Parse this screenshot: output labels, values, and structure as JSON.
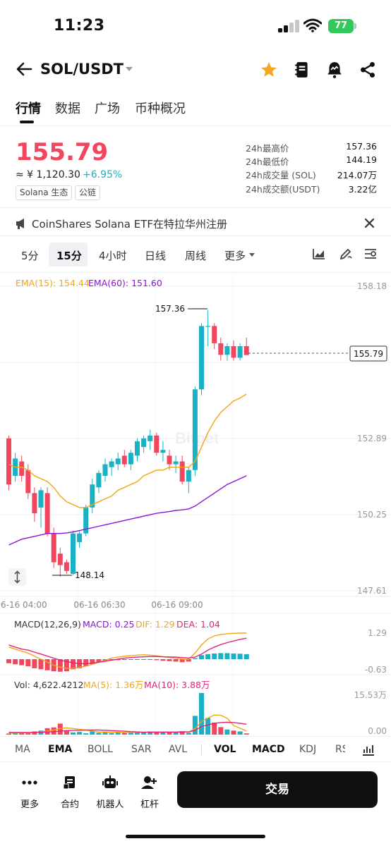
{
  "status": {
    "time": "11:23",
    "battery": "77"
  },
  "header": {
    "pair": "SOL/USDT"
  },
  "tabs": [
    {
      "label": "行情"
    },
    {
      "label": "数据"
    },
    {
      "label": "广场"
    },
    {
      "label": "币种概况"
    }
  ],
  "price": {
    "last": "155.79",
    "cny": "≈ ¥ 1,120.30",
    "change": "+6.95%",
    "tags": [
      "Solana 生态",
      "公链"
    ],
    "stats": [
      {
        "label": "24h最高价",
        "value": "157.36"
      },
      {
        "label": "24h最低价",
        "value": "144.19"
      },
      {
        "label": "24h成交量 (SOL)",
        "value": "214.07万"
      },
      {
        "label": "24h成交额(USDT)",
        "value": "3.22亿"
      }
    ]
  },
  "news": {
    "text": "CoinShares Solana ETF在特拉华州注册"
  },
  "periods": [
    "5分",
    "15分",
    "4小时",
    "日线",
    "周线",
    "更多"
  ],
  "chart_labels": {
    "ema15": "EMA(15): 154.44",
    "ema60": "EMA(60): 151.60",
    "price_ticks": [
      "158.18",
      "152.89",
      "150.25",
      "147.61"
    ],
    "current_price_tag": "155.79",
    "high_marker": "157.36",
    "low_marker": "148.14",
    "time_ticks": [
      "06-16 04:00",
      "06-16 06:30",
      "06-16 09:00"
    ],
    "macd_title": "MACD(12,26,9)",
    "macd_value": "MACD: 0.25",
    "dif_value": "DIF: 1.29",
    "dea_value": "DEA: 1.04",
    "macd_ticks": [
      "1.29",
      "-0.63"
    ],
    "vol_value": "Vol: 4,622.4212",
    "ma5_value": "MA(5): 1.36万",
    "ma10_value": "MA(10): 3.88万",
    "vol_ticks": [
      "15.53万",
      "0.00"
    ],
    "watermark": "Bitget"
  },
  "chart_data": {
    "type": "candlestick",
    "candles": [
      {
        "o": 152.9,
        "h": 153.0,
        "l": 151.1,
        "c": 151.3
      },
      {
        "o": 151.6,
        "h": 152.4,
        "l": 151.4,
        "c": 152.2
      },
      {
        "o": 152.1,
        "h": 152.3,
        "l": 151.4,
        "c": 151.6
      },
      {
        "o": 151.8,
        "h": 152.0,
        "l": 150.8,
        "c": 151.0
      },
      {
        "o": 151.0,
        "h": 151.2,
        "l": 150.0,
        "c": 150.3
      },
      {
        "o": 150.5,
        "h": 151.2,
        "l": 149.8,
        "c": 151.1
      },
      {
        "o": 151.0,
        "h": 151.2,
        "l": 149.5,
        "c": 149.6
      },
      {
        "o": 149.6,
        "h": 149.8,
        "l": 148.4,
        "c": 148.6
      },
      {
        "o": 148.9,
        "h": 149.1,
        "l": 148.1,
        "c": 148.5
      },
      {
        "o": 148.6,
        "h": 148.7,
        "l": 148.2,
        "c": 148.3
      },
      {
        "o": 148.2,
        "h": 149.7,
        "l": 148.15,
        "c": 149.6
      },
      {
        "o": 149.3,
        "h": 149.7,
        "l": 149.1,
        "c": 149.6
      },
      {
        "o": 149.6,
        "h": 150.6,
        "l": 149.5,
        "c": 150.5
      },
      {
        "o": 150.5,
        "h": 151.5,
        "l": 150.3,
        "c": 151.3
      },
      {
        "o": 151.2,
        "h": 151.8,
        "l": 151.0,
        "c": 151.7
      },
      {
        "o": 151.6,
        "h": 152.2,
        "l": 151.4,
        "c": 152.0
      },
      {
        "o": 151.9,
        "h": 152.2,
        "l": 151.6,
        "c": 152.1
      },
      {
        "o": 152.0,
        "h": 152.4,
        "l": 151.8,
        "c": 152.2
      },
      {
        "o": 152.3,
        "h": 152.5,
        "l": 151.9,
        "c": 152.0
      },
      {
        "o": 152.0,
        "h": 152.5,
        "l": 151.8,
        "c": 152.4
      },
      {
        "o": 152.3,
        "h": 152.9,
        "l": 152.1,
        "c": 152.8
      },
      {
        "o": 152.6,
        "h": 153.0,
        "l": 152.4,
        "c": 152.9
      },
      {
        "o": 152.8,
        "h": 153.2,
        "l": 152.5,
        "c": 153.0
      },
      {
        "o": 153.0,
        "h": 153.1,
        "l": 152.3,
        "c": 152.4
      },
      {
        "o": 152.4,
        "h": 152.8,
        "l": 152.1,
        "c": 152.5
      },
      {
        "o": 152.3,
        "h": 152.5,
        "l": 151.8,
        "c": 152.0
      },
      {
        "o": 152.0,
        "h": 152.3,
        "l": 151.7,
        "c": 152.1
      },
      {
        "o": 152.1,
        "h": 152.3,
        "l": 151.3,
        "c": 151.4
      },
      {
        "o": 151.4,
        "h": 151.9,
        "l": 151.0,
        "c": 151.8
      },
      {
        "o": 151.8,
        "h": 154.7,
        "l": 151.6,
        "c": 154.6
      },
      {
        "o": 154.6,
        "h": 156.9,
        "l": 154.4,
        "c": 156.8
      },
      {
        "o": 156.8,
        "h": 157.36,
        "l": 156.1,
        "c": 156.8
      },
      {
        "o": 156.8,
        "h": 156.9,
        "l": 156.0,
        "c": 156.2
      },
      {
        "o": 156.2,
        "h": 156.4,
        "l": 155.6,
        "c": 155.8
      },
      {
        "o": 155.8,
        "h": 156.2,
        "l": 155.6,
        "c": 156.1
      },
      {
        "o": 156.1,
        "h": 156.3,
        "l": 155.6,
        "c": 155.7
      },
      {
        "o": 155.7,
        "h": 156.2,
        "l": 155.6,
        "c": 156.1
      },
      {
        "o": 156.1,
        "h": 156.4,
        "l": 155.8,
        "c": 155.79
      }
    ],
    "ema15": [
      152.0,
      151.9,
      151.9,
      151.8,
      151.6,
      151.5,
      151.4,
      151.2,
      150.9,
      150.7,
      150.6,
      150.5,
      150.5,
      150.6,
      150.7,
      150.8,
      150.9,
      151.1,
      151.2,
      151.3,
      151.4,
      151.6,
      151.7,
      151.8,
      151.8,
      151.9,
      151.9,
      151.9,
      151.9,
      152.1,
      152.6,
      153.1,
      153.5,
      153.8,
      154.0,
      154.2,
      154.3,
      154.44
    ],
    "ema60": [
      149.2,
      149.3,
      149.4,
      149.45,
      149.5,
      149.55,
      149.6,
      149.6,
      149.6,
      149.62,
      149.65,
      149.7,
      149.75,
      149.8,
      149.85,
      149.9,
      149.95,
      150.0,
      150.05,
      150.1,
      150.15,
      150.2,
      150.25,
      150.3,
      150.33,
      150.36,
      150.4,
      150.42,
      150.45,
      150.55,
      150.7,
      150.85,
      151.0,
      151.15,
      151.3,
      151.4,
      151.5,
      151.6
    ],
    "macd_hist": [
      -0.2,
      -0.25,
      -0.3,
      -0.35,
      -0.45,
      -0.5,
      -0.55,
      -0.6,
      -0.62,
      -0.6,
      -0.5,
      -0.45,
      -0.35,
      -0.25,
      -0.15,
      -0.1,
      -0.05,
      -0.05,
      -0.04,
      -0.03,
      -0.02,
      -0.02,
      -0.03,
      -0.05,
      -0.08,
      -0.1,
      -0.12,
      -0.15,
      -0.12,
      0.05,
      0.2,
      0.25,
      0.28,
      0.3,
      0.3,
      0.28,
      0.27,
      0.25
    ],
    "dif": [
      0.6,
      0.5,
      0.4,
      0.3,
      0.15,
      0.0,
      -0.15,
      -0.3,
      -0.4,
      -0.45,
      -0.45,
      -0.4,
      -0.35,
      -0.25,
      -0.15,
      -0.05,
      0.05,
      0.1,
      0.15,
      0.17,
      0.2,
      0.22,
      0.2,
      0.17,
      0.12,
      0.08,
      0.05,
      0.0,
      0.0,
      0.3,
      0.7,
      1.0,
      1.15,
      1.22,
      1.26,
      1.28,
      1.29,
      1.29
    ],
    "dea": [
      0.7,
      0.6,
      0.5,
      0.45,
      0.35,
      0.25,
      0.15,
      0.05,
      -0.05,
      -0.12,
      -0.18,
      -0.22,
      -0.22,
      -0.2,
      -0.15,
      -0.1,
      -0.05,
      0.0,
      0.05,
      0.08,
      0.1,
      0.12,
      0.13,
      0.13,
      0.12,
      0.11,
      0.1,
      0.08,
      0.06,
      0.1,
      0.25,
      0.45,
      0.6,
      0.72,
      0.82,
      0.9,
      0.98,
      1.04
    ],
    "volume": [
      0.4,
      0.5,
      0.6,
      0.5,
      1.2,
      1.5,
      2.4,
      2.7,
      4.1,
      1.5,
      0.8,
      1.0,
      0.5,
      1.2,
      0.7,
      1.1,
      0.6,
      0.8,
      0.7,
      0.9,
      1.0,
      0.8,
      1.2,
      1.0,
      0.9,
      1.1,
      0.9,
      1.3,
      0.7,
      7.0,
      15.53,
      6.2,
      4.5,
      2.8,
      1.9,
      1.5,
      1.2,
      0.46
    ],
    "ma5": [
      0.6,
      0.6,
      0.6,
      0.7,
      0.8,
      1.0,
      1.3,
      1.7,
      2.3,
      2.5,
      2.3,
      2.0,
      1.7,
      1.3,
      1.0,
      0.9,
      0.9,
      0.9,
      0.8,
      0.8,
      0.9,
      0.9,
      1.0,
      1.0,
      1.0,
      1.0,
      1.0,
      1.1,
      1.0,
      2.2,
      4.9,
      6.2,
      7.3,
      7.2,
      6.1,
      3.4,
      2.4,
      1.36
    ],
    "ma10": [
      0.8,
      0.8,
      0.8,
      0.8,
      0.8,
      0.9,
      1.0,
      1.1,
      1.3,
      1.5,
      1.6,
      1.6,
      1.7,
      1.7,
      1.7,
      1.6,
      1.5,
      1.4,
      1.3,
      1.1,
      1.0,
      0.9,
      0.9,
      0.9,
      0.9,
      0.9,
      0.9,
      1.0,
      1.0,
      1.6,
      3.0,
      3.6,
      4.2,
      4.5,
      4.6,
      4.5,
      4.2,
      3.88
    ],
    "ylim": [
      147.61,
      158.18
    ],
    "current": 155.79
  },
  "indicators": [
    "MA",
    "EMA",
    "BOLL",
    "SAR",
    "AVL",
    "VOL",
    "MACD",
    "KDJ",
    "RSI"
  ],
  "bottom_bar": {
    "more": "更多",
    "contract": "合约",
    "robot": "机器人",
    "margin": "杠杆",
    "trade": "交易"
  },
  "colors": {
    "up": "#1ab1c4",
    "down": "#f0475f",
    "ema15": "#f2a515",
    "ema60": "#8a14d6",
    "dea": "#e8207a",
    "star": "#f5a623"
  }
}
